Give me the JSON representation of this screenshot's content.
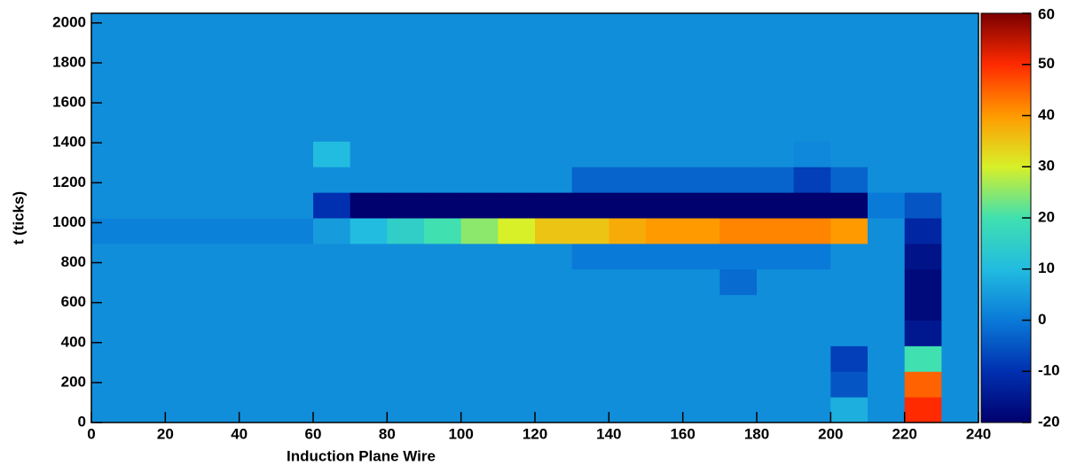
{
  "chart_data": {
    "type": "heatmap",
    "x_label": "Induction Plane Wire",
    "y_label": "t (ticks)",
    "xbins": [
      0,
      10,
      20,
      30,
      40,
      50,
      60,
      70,
      80,
      90,
      100,
      110,
      120,
      130,
      140,
      150,
      160,
      170,
      180,
      190,
      200,
      210,
      220,
      230,
      240
    ],
    "ybins": [
      0,
      128,
      256,
      384,
      512,
      640,
      768,
      896,
      1024,
      1152,
      1280,
      1408,
      1536,
      1664,
      1792,
      1920,
      2048
    ],
    "z": [
      [
        3,
        3,
        3,
        3,
        3,
        3,
        3,
        3,
        3,
        3,
        3,
        3,
        3,
        3,
        3,
        3,
        3,
        3,
        3,
        3,
        8,
        3,
        50,
        3
      ],
      [
        3,
        3,
        3,
        3,
        3,
        3,
        3,
        3,
        3,
        3,
        3,
        3,
        3,
        3,
        3,
        3,
        3,
        3,
        3,
        3,
        -5,
        3,
        45,
        3
      ],
      [
        3,
        3,
        3,
        3,
        3,
        3,
        3,
        3,
        3,
        3,
        3,
        3,
        3,
        3,
        3,
        3,
        3,
        3,
        3,
        3,
        -8,
        3,
        20,
        3
      ],
      [
        3,
        3,
        3,
        3,
        3,
        3,
        3,
        3,
        3,
        3,
        3,
        3,
        3,
        3,
        3,
        3,
        3,
        3,
        3,
        3,
        3,
        3,
        -15,
        3
      ],
      [
        3,
        3,
        3,
        3,
        3,
        3,
        3,
        3,
        3,
        3,
        3,
        3,
        3,
        3,
        3,
        3,
        3,
        3,
        3,
        3,
        3,
        3,
        -18,
        3
      ],
      [
        3,
        3,
        3,
        3,
        3,
        3,
        3,
        3,
        3,
        3,
        3,
        3,
        3,
        3,
        3,
        3,
        3,
        -2,
        3,
        3,
        3,
        3,
        -18,
        3
      ],
      [
        3,
        3,
        3,
        3,
        3,
        3,
        3,
        3,
        3,
        3,
        3,
        3,
        3,
        0,
        0,
        0,
        0,
        0,
        0,
        0,
        3,
        3,
        -16,
        3
      ],
      [
        1,
        1,
        1,
        1,
        1,
        1,
        5,
        10,
        15,
        20,
        25,
        30,
        35,
        35,
        38,
        40,
        40,
        42,
        42,
        42,
        40,
        3,
        -12,
        3
      ],
      [
        3,
        3,
        3,
        3,
        3,
        3,
        -10,
        -20,
        -20,
        -20,
        -20,
        -20,
        -20,
        -20,
        -20,
        -20,
        -20,
        -20,
        -20,
        -20,
        -20,
        0,
        -5,
        3
      ],
      [
        3,
        3,
        3,
        3,
        3,
        3,
        3,
        3,
        3,
        3,
        3,
        3,
        3,
        -3,
        -3,
        -3,
        -3,
        -3,
        -3,
        -8,
        -3,
        3,
        3,
        3
      ],
      [
        3,
        3,
        3,
        3,
        3,
        3,
        10,
        3,
        3,
        3,
        3,
        3,
        3,
        3,
        3,
        3,
        3,
        3,
        3,
        2,
        3,
        3,
        3,
        3
      ],
      [
        3,
        3,
        3,
        3,
        3,
        3,
        3,
        3,
        3,
        3,
        3,
        3,
        3,
        3,
        3,
        3,
        3,
        3,
        3,
        3,
        3,
        3,
        3,
        3
      ],
      [
        3,
        3,
        3,
        3,
        3,
        3,
        3,
        3,
        3,
        3,
        3,
        3,
        3,
        3,
        3,
        3,
        3,
        3,
        3,
        3,
        3,
        3,
        3,
        3
      ],
      [
        3,
        3,
        3,
        3,
        3,
        3,
        3,
        3,
        3,
        3,
        3,
        3,
        3,
        3,
        3,
        3,
        3,
        3,
        3,
        3,
        3,
        3,
        3,
        3
      ],
      [
        3,
        3,
        3,
        3,
        3,
        3,
        3,
        3,
        3,
        3,
        3,
        3,
        3,
        3,
        3,
        3,
        3,
        3,
        3,
        3,
        3,
        3,
        3,
        3
      ],
      [
        3,
        3,
        3,
        3,
        3,
        3,
        3,
        3,
        3,
        3,
        3,
        3,
        3,
        3,
        3,
        3,
        3,
        3,
        3,
        3,
        3,
        3,
        3,
        3
      ]
    ],
    "xlim": [
      0,
      240
    ],
    "xticks": [
      0,
      20,
      40,
      60,
      80,
      100,
      120,
      140,
      160,
      180,
      200,
      220,
      240
    ],
    "ylim": [
      0,
      2048
    ],
    "yticks": [
      0,
      200,
      400,
      600,
      800,
      1000,
      1200,
      1400,
      1600,
      1800,
      2000
    ],
    "zlim": [
      -20,
      60
    ],
    "zticks": [
      -20,
      -10,
      0,
      10,
      20,
      30,
      40,
      50,
      60
    ],
    "colorscale": [
      "#00006e",
      "#0030b0",
      "#0a7ad8",
      "#22bce0",
      "#40e0b0",
      "#d8f028",
      "#ff9a00",
      "#ff2a00",
      "#7a0000"
    ]
  }
}
